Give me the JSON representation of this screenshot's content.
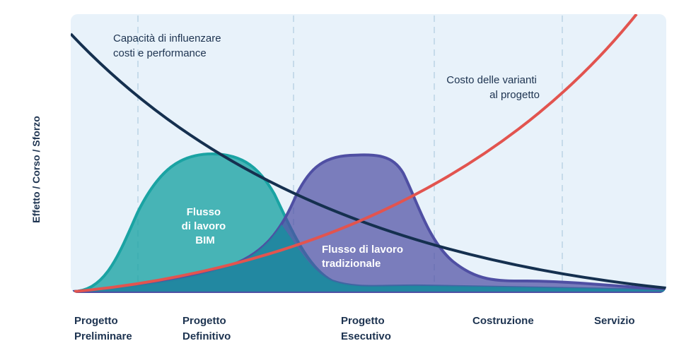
{
  "chart_data": {
    "type": "area",
    "ylabel": "Effetto / Corso / Sforzo",
    "phases": [
      {
        "line1": "Progetto",
        "line2": "Preliminare"
      },
      {
        "line1": "Progetto",
        "line2": "Definitivo"
      },
      {
        "line1": "Progetto",
        "line2": "Esecutivo"
      },
      {
        "line1": "Costruzione",
        "line2": ""
      },
      {
        "line1": "Servizio",
        "line2": ""
      }
    ],
    "series": [
      {
        "name_lines": [
          "Capacità di influenzare",
          "costi e performance"
        ],
        "kind": "line",
        "color": "#15304f"
      },
      {
        "name_lines": [
          "Costo delle varianti",
          "al progetto"
        ],
        "kind": "line",
        "color": "#e2544f"
      },
      {
        "name_lines": [
          "Flusso",
          "di lavoro",
          "BIM"
        ],
        "kind": "area",
        "color": "#1aa3a3"
      },
      {
        "name_lines": [
          "Flusso di lavoro",
          "tradizionale"
        ],
        "kind": "area",
        "color": "#4f4fa3"
      }
    ],
    "grid": true,
    "colors": {
      "plot_bg": "#e8f2fa",
      "grid": "#c6dbea"
    }
  }
}
